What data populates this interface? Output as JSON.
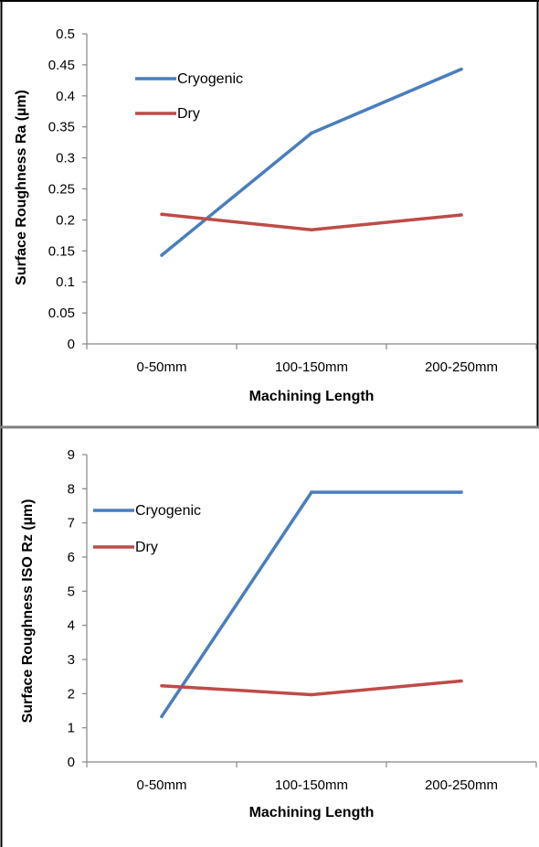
{
  "charts_style": {
    "axis_color": "#868686",
    "divider_color": "#7f7f7f"
  },
  "chart_data": [
    {
      "type": "line",
      "title": "",
      "xlabel": "Machining Length",
      "ylabel": "Surface Roughness Ra (µm)",
      "categories": [
        "0-50mm",
        "100-150mm",
        "200-250mm"
      ],
      "ylim": [
        0,
        0.5
      ],
      "ytick_step": 0.05,
      "yticks": [
        "0",
        "0.05",
        "0.1",
        "0.15",
        "0.2",
        "0.25",
        "0.3",
        "0.35",
        "0.4",
        "0.45",
        "0.5"
      ],
      "grid": false,
      "legend": "top-left",
      "series": [
        {
          "name": "Cryogenic",
          "color": "#4a7ebb",
          "values": [
            0.143,
            0.34,
            0.443
          ]
        },
        {
          "name": "Dry",
          "color": "#be4b48",
          "values": [
            0.209,
            0.184,
            0.208
          ]
        }
      ]
    },
    {
      "type": "line",
      "title": "",
      "xlabel": "Machining Length",
      "ylabel": "Surface Roughness ISO Rz (µm)",
      "categories": [
        "0-50mm",
        "100-150mm",
        "200-250mm"
      ],
      "ylim": [
        0,
        9
      ],
      "ytick_step": 1,
      "yticks": [
        "0",
        "1",
        "2",
        "3",
        "4",
        "5",
        "6",
        "7",
        "8",
        "9"
      ],
      "grid": false,
      "legend": "top-left",
      "series": [
        {
          "name": "Cryogenic",
          "color": "#4a7ebb",
          "values": [
            1.33,
            7.9,
            7.9
          ]
        },
        {
          "name": "Dry",
          "color": "#be4b48",
          "values": [
            2.23,
            1.97,
            2.37
          ]
        }
      ]
    }
  ]
}
